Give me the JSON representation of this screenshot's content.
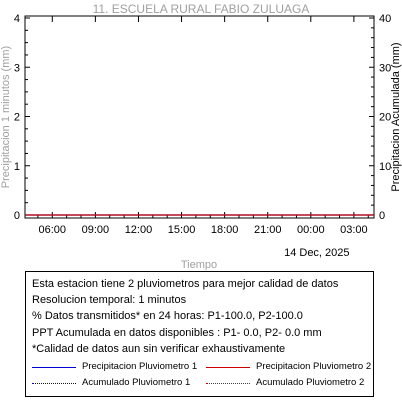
{
  "chart_data": {
    "type": "line",
    "title": "11. ESCUELA RURAL FABIO ZULUAGA",
    "xlabel": "Tiempo",
    "ylabel_left": "Precipitacion 1 minutos (mm)",
    "ylabel_right": "Precipitacion Acumulada (mm)",
    "x_ticks": [
      "06:00",
      "09:00",
      "12:00",
      "15:00",
      "18:00",
      "21:00",
      "00:00",
      "03:00"
    ],
    "x_tick_hours": [
      6,
      9,
      12,
      15,
      18,
      21,
      24,
      27
    ],
    "xlim_hours": [
      4.1,
      28.4
    ],
    "date_label": "14 Dec, 2025",
    "date_label_hour": 24,
    "ylim_left": [
      0,
      4
    ],
    "yticks_left": [
      0,
      1,
      2,
      3,
      4
    ],
    "ylim_right": [
      0,
      40
    ],
    "yticks_right": [
      0,
      10,
      20,
      30,
      40
    ],
    "grid": false,
    "series": [
      {
        "name": "Precipitacion Pluviometro 1",
        "axis": "left",
        "color": "#0000cc",
        "style": "solid",
        "x": [
          4.1,
          28.4
        ],
        "values": [
          0,
          0
        ]
      },
      {
        "name": "Precipitacion Pluviometro 2",
        "axis": "left",
        "color": "#cc0000",
        "style": "solid",
        "x": [
          4.1,
          28.4
        ],
        "values": [
          0,
          0
        ]
      },
      {
        "name": "Acumulado Pluviometro 1",
        "axis": "right",
        "color": "#0000cc",
        "style": "dotted",
        "x": [
          4.1,
          28.4
        ],
        "values": [
          0,
          0
        ]
      },
      {
        "name": "Acumulado Pluviometro 2",
        "axis": "right",
        "color": "#cc0000",
        "style": "dotted",
        "x": [
          4.1,
          28.4
        ],
        "values": [
          0,
          0
        ]
      }
    ]
  },
  "info": {
    "lines": [
      "Esta estacion tiene 2 pluviometros para mejor calidad de datos",
      "Resolucion temporal: 1 minutos",
      "% Datos transmitidos* en 24 horas: P1-100.0, P2-100.0",
      "PPT Acumulada en datos disponibles : P1-  0.0, P2-  0.0 mm",
      "*Calidad de datos aun sin verificar exhaustivamente"
    ],
    "legend": [
      {
        "label": "Precipitacion Pluviometro 1",
        "color": "#0000cc",
        "style": "solid"
      },
      {
        "label": "Precipitacion Pluviometro 2",
        "color": "#cc0000",
        "style": "solid"
      },
      {
        "label": "Acumulado Pluviometro 1",
        "color": "#0000cc",
        "style": "dotted"
      },
      {
        "label": "Acumulado Pluviometro 2",
        "color": "#cc0000",
        "style": "dotted"
      }
    ]
  }
}
